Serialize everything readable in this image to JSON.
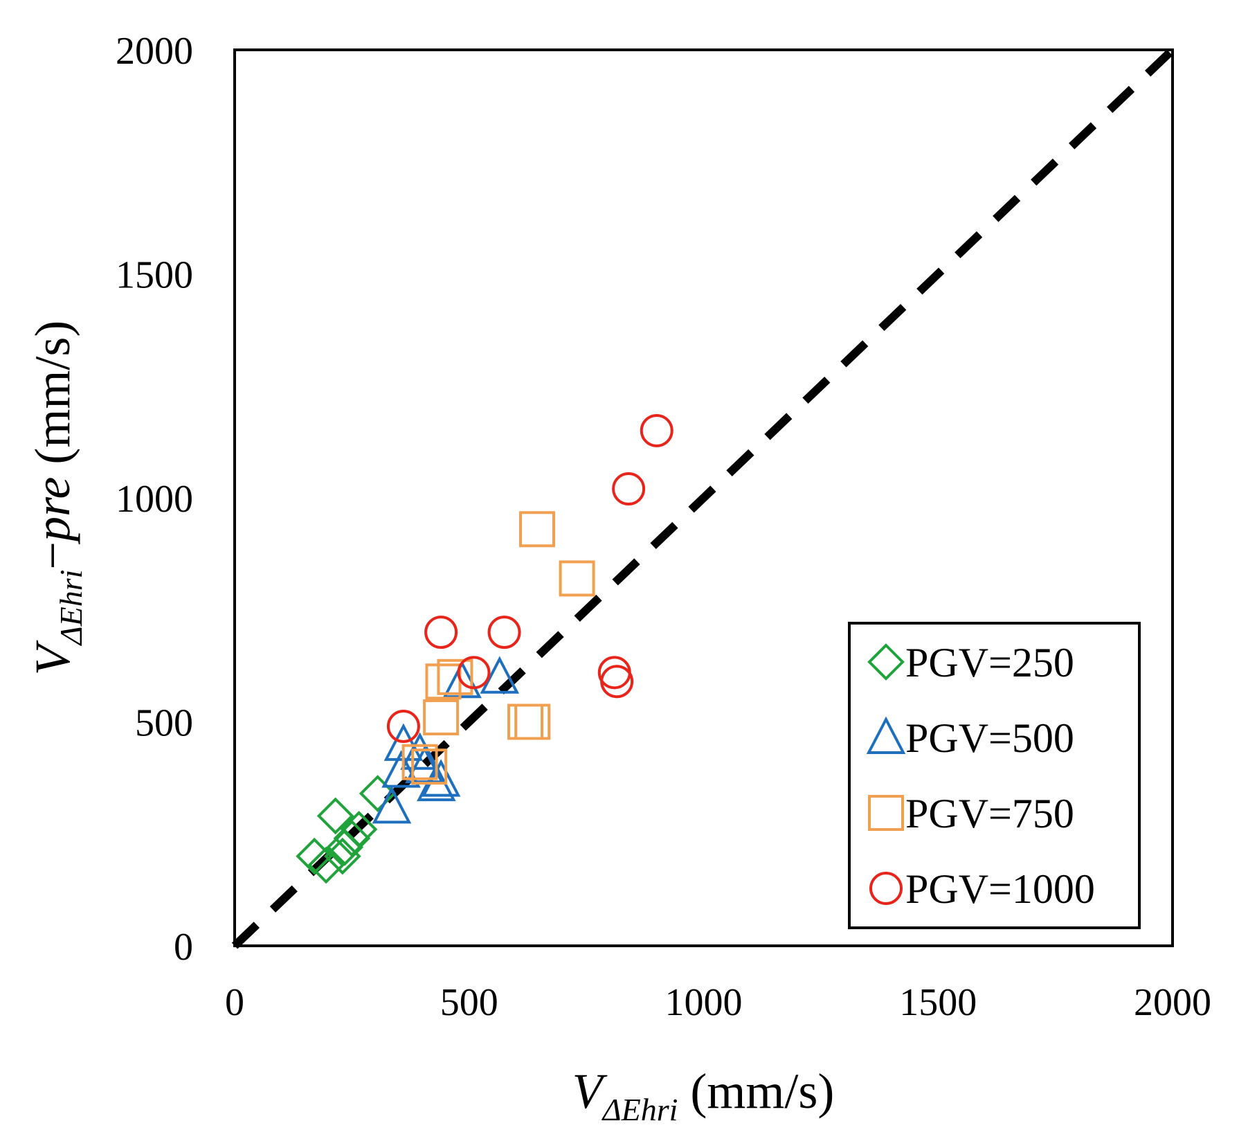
{
  "chart_data": {
    "type": "scatter",
    "title": "",
    "xlabel": {
      "main": "V",
      "subscript": "ΔEhri",
      "unit": " (mm/s)"
    },
    "ylabel": {
      "main": "V",
      "subscript": "ΔEhri",
      "suffix_dash": "−",
      "suffix": "pre",
      "unit": " (mm/s)"
    },
    "xlim": [
      0,
      2000
    ],
    "ylim": [
      0,
      2000
    ],
    "xticks": [
      "0",
      "500",
      "1000",
      "1500",
      "2000"
    ],
    "yticks": [
      "0",
      "500",
      "1000",
      "1500",
      "2000"
    ],
    "xtick_values": [
      0,
      500,
      1000,
      1500,
      2000
    ],
    "ytick_values": [
      0,
      500,
      1000,
      1500,
      2000
    ],
    "grid": false,
    "legend_position": "bottom-right",
    "reference_line": {
      "style": "dashed",
      "color": "#000000",
      "from": [
        0,
        0
      ],
      "to": [
        2000,
        2000
      ]
    },
    "series": [
      {
        "name": "PGV=250",
        "marker": "diamond",
        "color": "#1fa33a",
        "points": [
          [
            170,
            200
          ],
          [
            195,
            180
          ],
          [
            215,
            290
          ],
          [
            230,
            200
          ],
          [
            235,
            220
          ],
          [
            250,
            240
          ],
          [
            265,
            260
          ],
          [
            305,
            340
          ]
        ]
      },
      {
        "name": "PGV=500",
        "marker": "triangle",
        "color": "#1f6fbf",
        "points": [
          [
            335,
            310
          ],
          [
            355,
            390
          ],
          [
            360,
            450
          ],
          [
            395,
            430
          ],
          [
            405,
            400
          ],
          [
            430,
            360
          ],
          [
            440,
            370
          ],
          [
            485,
            590
          ],
          [
            565,
            600
          ]
        ]
      },
      {
        "name": "PGV=750",
        "marker": "square",
        "color": "#f0a050",
        "points": [
          [
            395,
            410
          ],
          [
            415,
            400
          ],
          [
            440,
            510
          ],
          [
            445,
            590
          ],
          [
            470,
            600
          ],
          [
            620,
            500
          ],
          [
            635,
            500
          ],
          [
            645,
            930
          ],
          [
            730,
            820
          ]
        ]
      },
      {
        "name": "PGV=1000",
        "marker": "circle",
        "color": "#e8251b",
        "points": [
          [
            360,
            490
          ],
          [
            440,
            700
          ],
          [
            510,
            610
          ],
          [
            575,
            700
          ],
          [
            810,
            610
          ],
          [
            815,
            590
          ],
          [
            840,
            1020
          ],
          [
            900,
            1150
          ]
        ]
      }
    ]
  }
}
